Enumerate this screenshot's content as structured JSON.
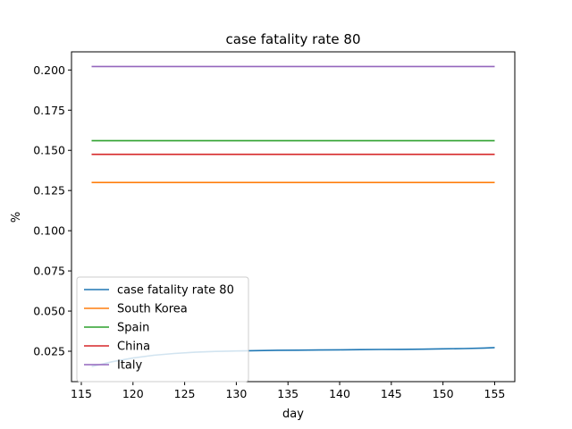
{
  "chart_data": {
    "type": "line",
    "title": "case fatality rate 80",
    "xlabel": "day",
    "ylabel": "%",
    "xlim": [
      114.05,
      156.95
    ],
    "ylim": [
      0.0061,
      0.2113
    ],
    "xticks": [
      115,
      120,
      125,
      130,
      135,
      140,
      145,
      150,
      155
    ],
    "xtick_labels": [
      "115",
      "120",
      "125",
      "130",
      "135",
      "140",
      "145",
      "150",
      "155"
    ],
    "yticks": [
      0.025,
      0.05,
      0.075,
      0.1,
      0.125,
      0.15,
      0.175,
      0.2
    ],
    "ytick_labels": [
      "0.025",
      "0.050",
      "0.075",
      "0.100",
      "0.125",
      "0.150",
      "0.175",
      "0.200"
    ],
    "grid": false,
    "legend_position": "lower-left",
    "series": [
      {
        "name": "case fatality rate 80",
        "color": "#1f77b4",
        "x": [
          116,
          118,
          120,
          122,
          124,
          126,
          128,
          130,
          132,
          134,
          136,
          138,
          140,
          142,
          144,
          146,
          148,
          150,
          152,
          154,
          155
        ],
        "y": [
          0.0155,
          0.0185,
          0.0208,
          0.0225,
          0.0236,
          0.0244,
          0.0249,
          0.0252,
          0.0254,
          0.0256,
          0.0257,
          0.0258,
          0.0259,
          0.026,
          0.0261,
          0.0262,
          0.0263,
          0.0265,
          0.0267,
          0.027,
          0.0273
        ]
      },
      {
        "name": "South Korea",
        "color": "#ff7f0e",
        "x": [
          116,
          155
        ],
        "y": [
          0.13,
          0.13
        ]
      },
      {
        "name": "Spain",
        "color": "#2ca02c",
        "x": [
          116,
          155
        ],
        "y": [
          0.156,
          0.156
        ]
      },
      {
        "name": "China",
        "color": "#d62728",
        "x": [
          116,
          155
        ],
        "y": [
          0.1475,
          0.1475
        ]
      },
      {
        "name": "Italy",
        "color": "#9467bd",
        "x": [
          116,
          155
        ],
        "y": [
          0.2022,
          0.2022
        ]
      }
    ]
  }
}
